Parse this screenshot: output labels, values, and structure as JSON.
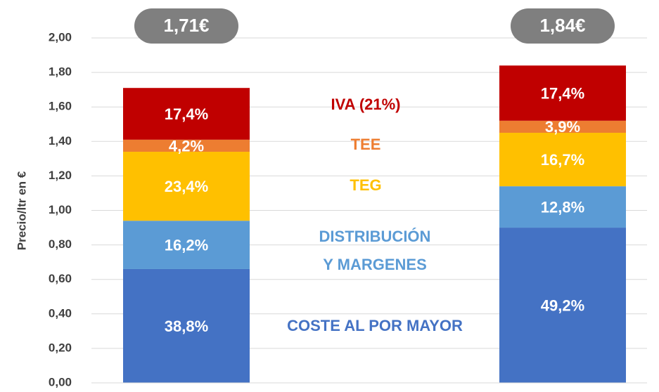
{
  "chart_data": {
    "type": "stacked_bar",
    "ylabel": "Precio/ltr en €",
    "categories": [
      null,
      null
    ],
    "series": [
      {
        "name": "COSTE AL POR MAYOR",
        "color": "#4472c4",
        "values": [
          0.66,
          0.9
        ],
        "value_labels": [
          "38,8%",
          "49,2%"
        ]
      },
      {
        "name": "DISTRIBUCIÓN Y MARGENES",
        "color": "#5b9bd5",
        "values": [
          0.28,
          0.24
        ],
        "value_labels": [
          "16,2%",
          "12,8%"
        ]
      },
      {
        "name": "TEG",
        "color": "#ffc000",
        "values": [
          0.4,
          0.31
        ],
        "value_labels": [
          "23,4%",
          "16,7%"
        ]
      },
      {
        "name": "TEE",
        "color": "#ed7d31",
        "values": [
          0.07,
          0.07
        ],
        "value_labels": [
          "4,2%",
          "3,9%"
        ]
      },
      {
        "name": "IVA (21%)",
        "color": "#c00000",
        "values": [
          0.3,
          0.32
        ],
        "value_labels": [
          "17,4%",
          "17,4%"
        ]
      }
    ],
    "totals": [
      1.71,
      1.84
    ],
    "total_labels": [
      "1,71€",
      "1,84€"
    ],
    "ylim": [
      0,
      2
    ],
    "yticks": [
      {
        "value": 0,
        "label": "0,00"
      },
      {
        "value": 0.2,
        "label": "0,20"
      },
      {
        "value": 0.4,
        "label": "0,40"
      },
      {
        "value": 0.6,
        "label": "0,60"
      },
      {
        "value": 0.8,
        "label": "0,80"
      },
      {
        "value": 1.0,
        "label": "1,00"
      },
      {
        "value": 1.2,
        "label": "1,20"
      },
      {
        "value": 1.4,
        "label": "1,40"
      },
      {
        "value": 1.6,
        "label": "1,60"
      },
      {
        "value": 1.8,
        "label": "1,80"
      },
      {
        "value": 2.0,
        "label": "2,00"
      }
    ],
    "grid": true
  }
}
